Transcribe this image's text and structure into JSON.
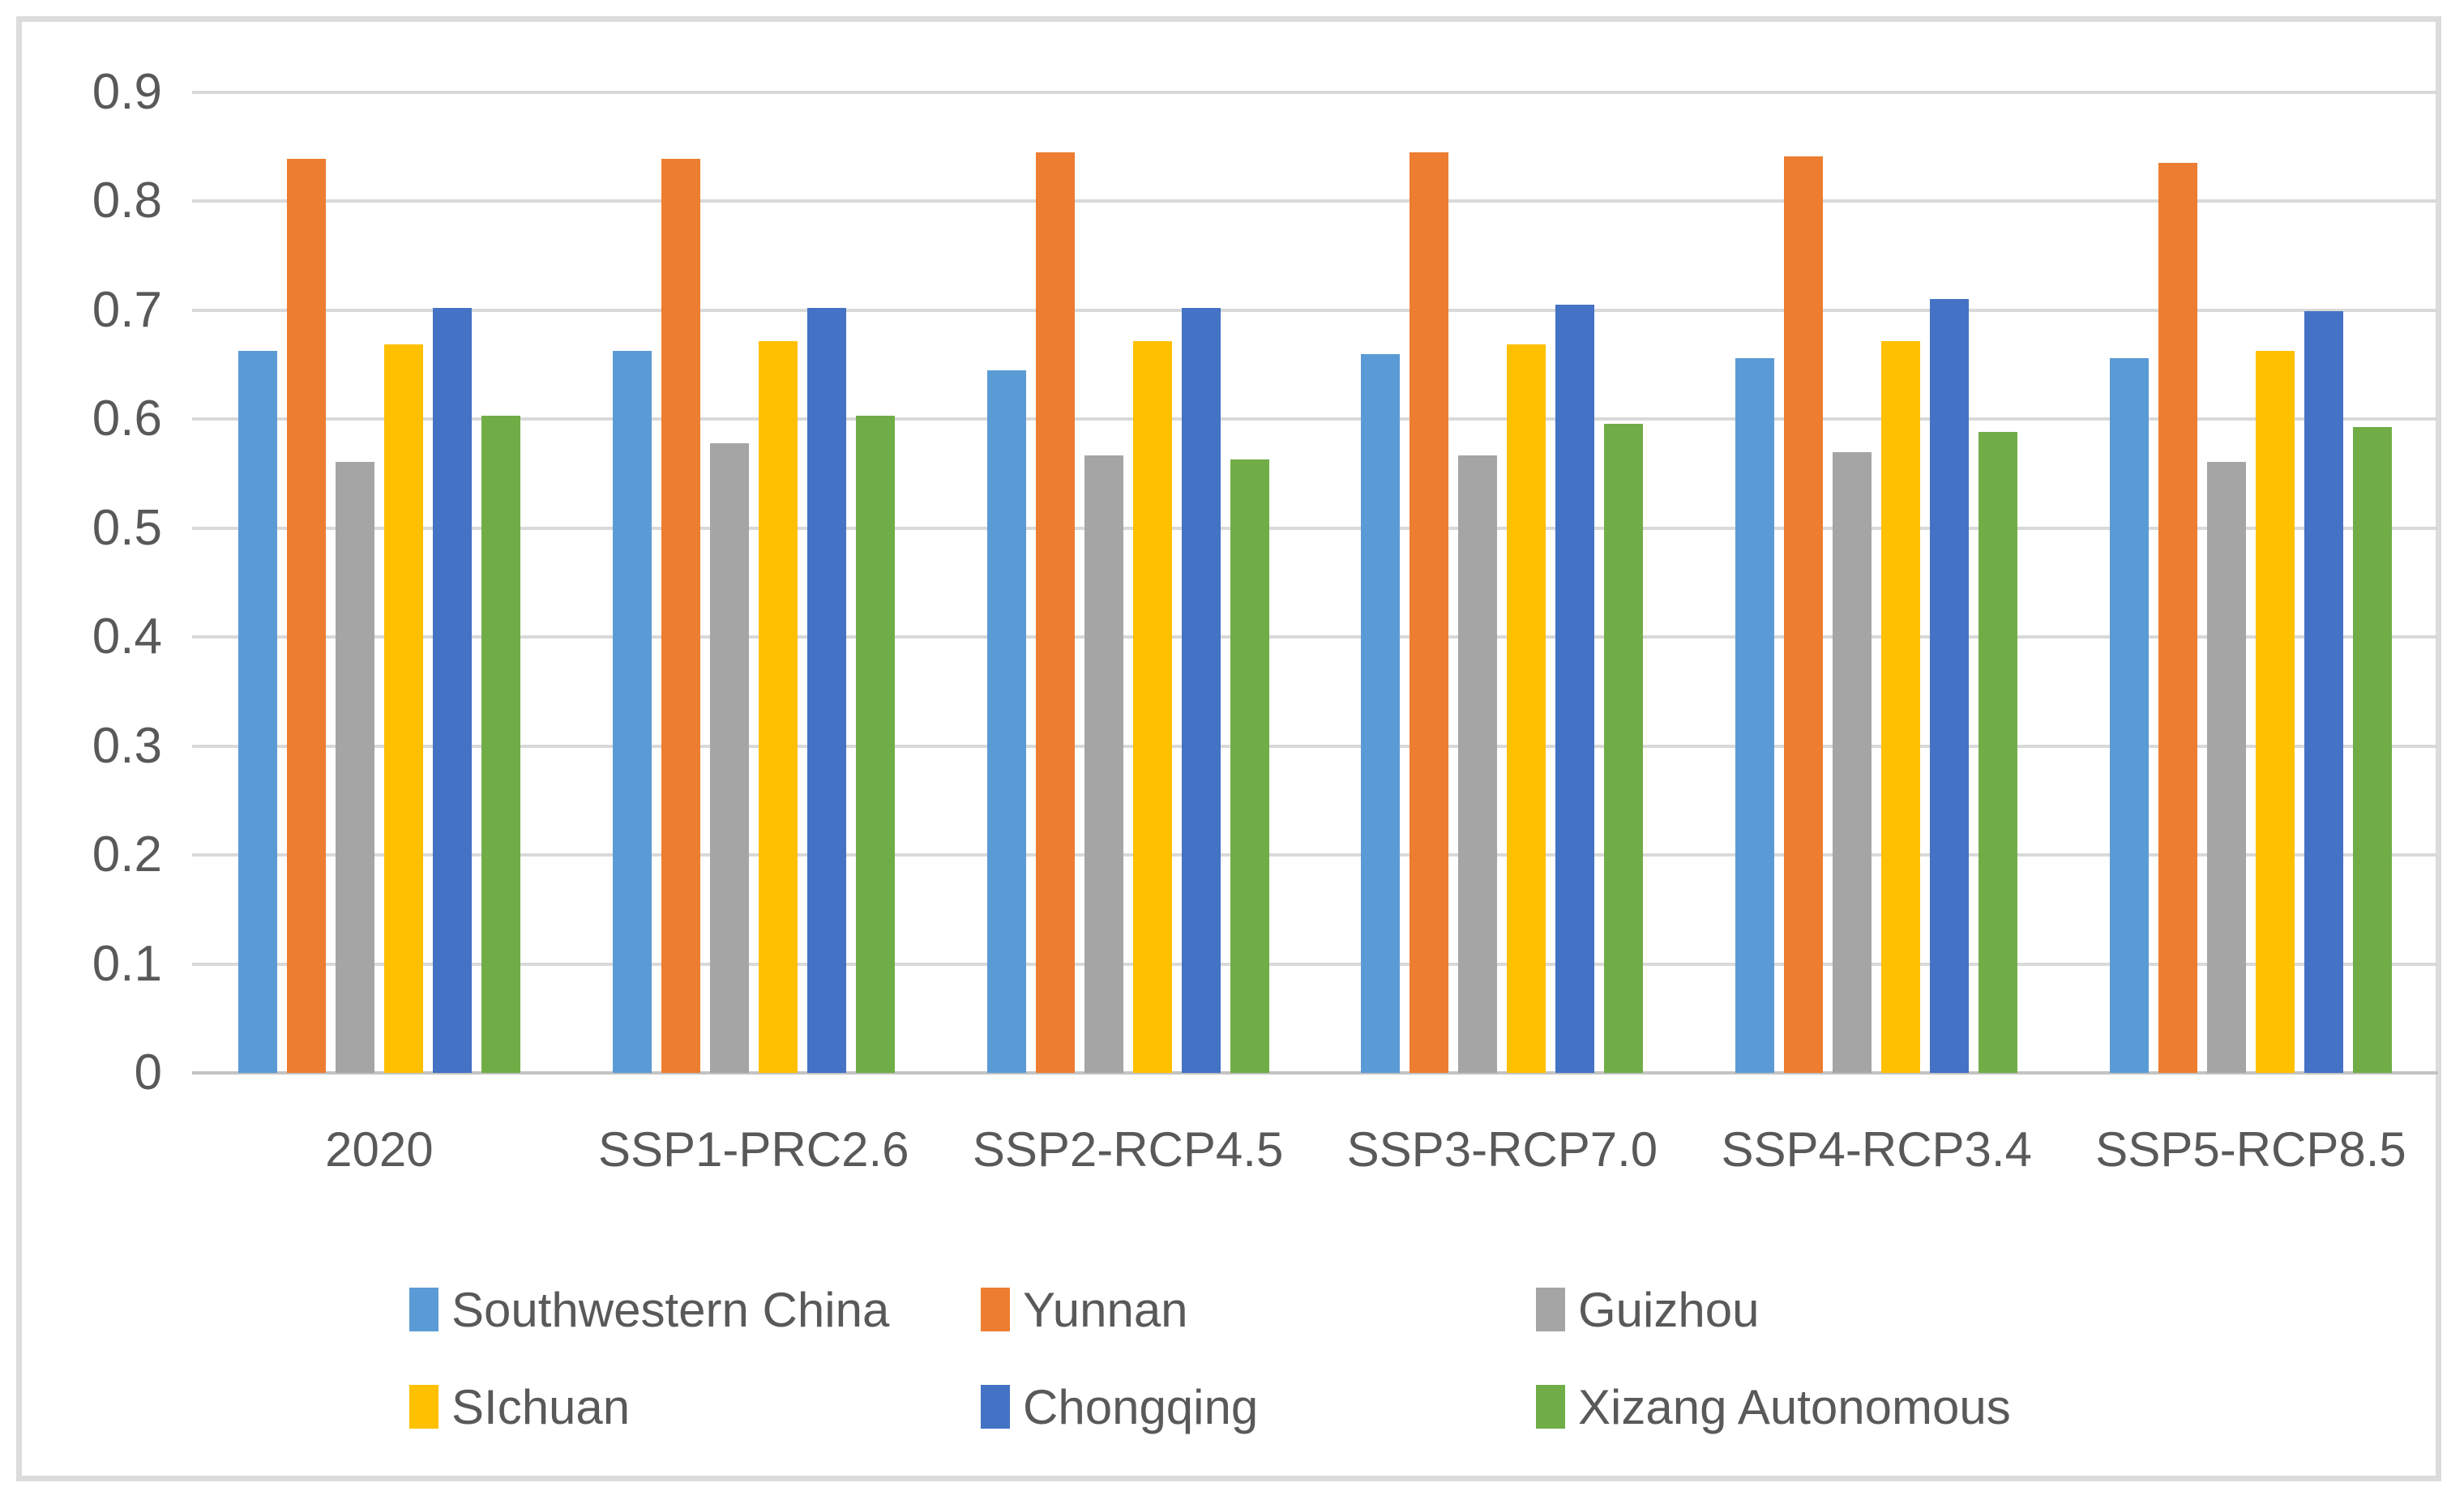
{
  "chart_data": {
    "type": "bar",
    "title": "",
    "xlabel": "",
    "ylabel": "",
    "categories": [
      "2020",
      "SSP1-PRC2.6",
      "SSP2-RCP4.5",
      "SSP3-RCP7.0",
      "SSP4-RCP3.4",
      "SSP5-RCP8.5"
    ],
    "series": [
      {
        "name": "Southwestern China",
        "color": "#5B9BD5",
        "values": [
          0.663,
          0.663,
          0.645,
          0.66,
          0.656,
          0.656
        ]
      },
      {
        "name": "Yunnan",
        "color": "#ED7D31",
        "values": [
          0.839,
          0.839,
          0.845,
          0.845,
          0.841,
          0.835
        ]
      },
      {
        "name": "Guizhou",
        "color": "#A5A5A5",
        "values": [
          0.561,
          0.578,
          0.567,
          0.567,
          0.57,
          0.561
        ]
      },
      {
        "name": "SIchuan",
        "color": "#FFC000",
        "values": [
          0.669,
          0.672,
          0.672,
          0.669,
          0.672,
          0.663
        ]
      },
      {
        "name": "Chongqing",
        "color": "#4472C4",
        "values": [
          0.702,
          0.702,
          0.702,
          0.705,
          0.71,
          0.699
        ]
      },
      {
        "name": "Xizang Autonomous",
        "color": "#70AD47",
        "values": [
          0.603,
          0.603,
          0.563,
          0.596,
          0.588,
          0.593
        ]
      }
    ],
    "y_axis": {
      "min": 0,
      "max": 0.9,
      "step": 0.1,
      "tick_labels": [
        "0",
        "0.1",
        "0.2",
        "0.3",
        "0.4",
        "0.5",
        "0.6",
        "0.7",
        "0.8",
        "0.9"
      ]
    },
    "grid": true,
    "legend_position": "bottom",
    "colors": {
      "gridline": "#D9D9D9",
      "axis_line": "#C3C3C3",
      "tick_text": "#595959",
      "frame_border": "#DCDCDC",
      "background": "#FFFFFF"
    }
  }
}
